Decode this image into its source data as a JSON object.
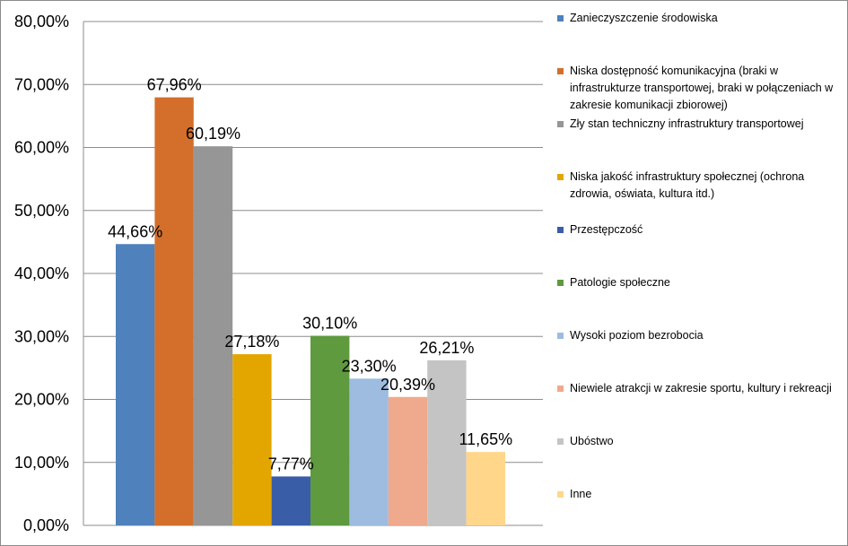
{
  "chart_data": {
    "type": "bar",
    "title": "",
    "xlabel": "",
    "ylabel": "",
    "ylim": [
      0,
      80
    ],
    "y_ticks": [
      "0,00%",
      "10,00%",
      "20,00%",
      "30,00%",
      "40,00%",
      "50,00%",
      "60,00%",
      "70,00%",
      "80,00%"
    ],
    "grid": true,
    "legend_position": "right",
    "series": [
      {
        "name": "Zanieczyszczenie środowiska",
        "value": 44.66,
        "label": "44,66%",
        "color": "#4F81BD"
      },
      {
        "name": "Niska dostępność komunikacyjna (braki w infrastrukturze transportowej, braki w połączeniach w zakresie komunikacji zbiorowej)",
        "value": 67.96,
        "label": "67,96%",
        "color": "#D36F2B"
      },
      {
        "name": "Zły stan techniczny infrastruktury transportowej",
        "value": 60.19,
        "label": "60,19%",
        "color": "#969696"
      },
      {
        "name": "Niska jakość infrastruktury społecznej (ochrona zdrowia, oświata, kultura itd.)",
        "value": 27.18,
        "label": "27,18%",
        "color": "#E3A600"
      },
      {
        "name": "Przestępczość",
        "value": 7.77,
        "label": "7,77%",
        "color": "#3A5DA8"
      },
      {
        "name": "Patologie społeczne",
        "value": 30.1,
        "label": "30,10%",
        "color": "#5F9A3E"
      },
      {
        "name": "Wysoki poziom bezrobocia",
        "value": 23.3,
        "label": "23,30%",
        "color": "#9DBCE0"
      },
      {
        "name": "Niewiele atrakcji w zakresie sportu, kultury i rekreacji",
        "value": 20.39,
        "label": "20,39%",
        "color": "#EFA98C"
      },
      {
        "name": "Ubóstwo",
        "value": 26.21,
        "label": "26,21%",
        "color": "#C4C4C4"
      },
      {
        "name": "Inne",
        "value": 11.65,
        "label": "11,65%",
        "color": "#FFD68A"
      }
    ]
  }
}
